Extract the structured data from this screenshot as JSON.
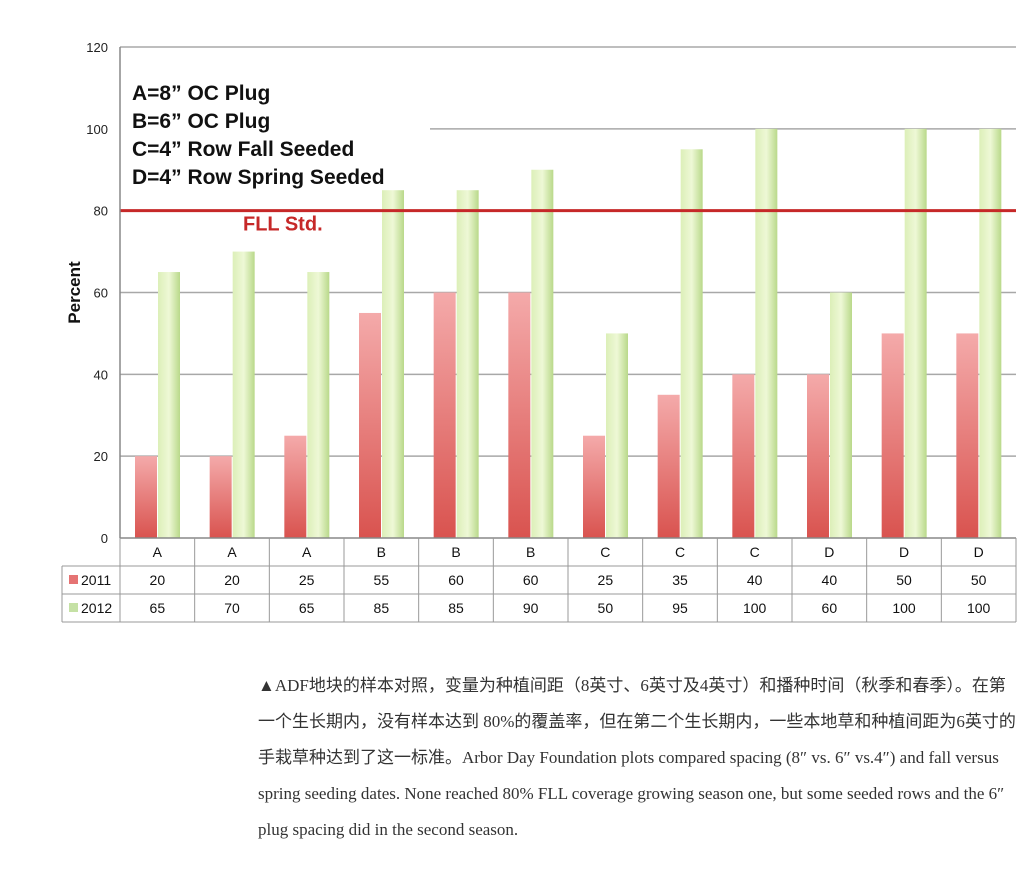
{
  "chart_data": {
    "type": "bar",
    "ylabel": "Percent",
    "ylim": [
      0,
      120
    ],
    "yticks": [
      0,
      20,
      40,
      60,
      80,
      100,
      120
    ],
    "categories": [
      "A",
      "A",
      "A",
      "B",
      "B",
      "B",
      "C",
      "C",
      "C",
      "D",
      "D",
      "D"
    ],
    "series": [
      {
        "name": "2011",
        "color": "#e57373",
        "values": [
          20,
          20,
          25,
          55,
          60,
          60,
          25,
          35,
          40,
          40,
          50,
          50
        ]
      },
      {
        "name": "2012",
        "color": "#c5e1a5",
        "values": [
          65,
          70,
          65,
          85,
          85,
          90,
          50,
          95,
          100,
          60,
          100,
          100
        ]
      }
    ],
    "reference_line": {
      "value": 80,
      "label": "FLL Std.",
      "color": "#c62828"
    },
    "key_notes": [
      "A=8” OC Plug",
      "B=6” OC Plug",
      "C=4” Row Fall Seeded",
      "D=4” Row Spring Seeded"
    ],
    "grid": true,
    "data_table": true
  },
  "caption": {
    "text": "▲ADF地块的样本对照，变量为种植间距（8英寸、6英寸及4英寸）和播种时间（秋季和春季）。在第一个生长期内，没有样本达到 80%的覆盖率，但在第二个生长期内，一些本地草和种植间距为6英寸的手栽草种达到了这一标准。Arbor Day Foundation plots compared spacing (8″ vs. 6″ vs.4″) and fall versus spring seeding dates. None reached 80% FLL coverage growing season one, but some seeded rows and the 6″ plug spacing did in the second season."
  }
}
